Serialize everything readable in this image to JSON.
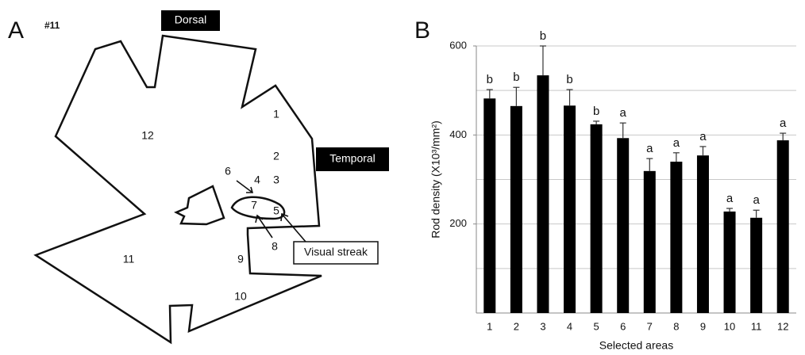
{
  "panel_a": {
    "label": "A",
    "specimen": "#11",
    "dorsal": "Dorsal",
    "temporal": "Temporal",
    "visual_streak": "Visual streak",
    "areas": [
      "1",
      "2",
      "3",
      "4",
      "5",
      "6",
      "7",
      "8",
      "9",
      "10",
      "11",
      "12"
    ]
  },
  "chart_data": {
    "type": "bar",
    "panel_label": "B",
    "x_label": "Selected areas",
    "y_label": "Rod density (X10³/mm²)",
    "categories": [
      "1",
      "2",
      "3",
      "4",
      "5",
      "6",
      "7",
      "8",
      "9",
      "10",
      "11",
      "12"
    ],
    "values": [
      482,
      465,
      534,
      466,
      424,
      393,
      319,
      340,
      354,
      228,
      214,
      388
    ],
    "errors": [
      20,
      42,
      66,
      36,
      7,
      34,
      28,
      20,
      20,
      7,
      17,
      16
    ],
    "letters": [
      "b",
      "b",
      "b",
      "b",
      "b",
      "a",
      "a",
      "a",
      "a",
      "a",
      "a",
      "a"
    ],
    "color": "#000000",
    "ylim": [
      0,
      600
    ],
    "yticks": [
      200,
      400,
      600
    ],
    "gridlines": [
      0,
      100,
      200,
      300,
      400,
      500,
      600
    ],
    "grid": true
  }
}
